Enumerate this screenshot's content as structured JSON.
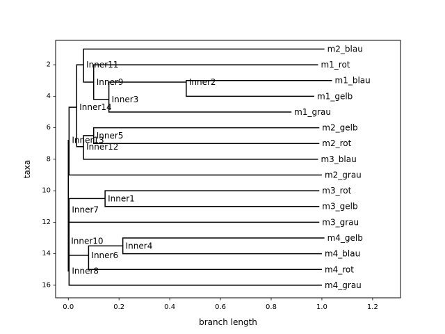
{
  "chart_data": {
    "type": "tree",
    "xlabel": "branch length",
    "ylabel": "taxa",
    "xlim": [
      -0.05,
      1.31
    ],
    "ylim": [
      16.8,
      0.45
    ],
    "x_ticks": [
      0.0,
      0.2,
      0.4,
      0.6,
      0.8,
      1.0,
      1.2
    ],
    "x_tick_labels": [
      "0.0",
      "0.2",
      "0.4",
      "0.6",
      "0.8",
      "1.0",
      "1.2"
    ],
    "y_ticks": [
      2,
      4,
      6,
      8,
      10,
      12,
      14,
      16
    ],
    "y_tick_labels": [
      "2",
      "4",
      "6",
      "8",
      "10",
      "12",
      "14",
      "16"
    ],
    "root": "Inner10",
    "nodes": [
      {
        "name": "Inner10",
        "x": 0.0,
        "y": 13.2,
        "label": "Inner10"
      },
      {
        "name": "Inner13",
        "x": 0.003,
        "y": 6.8,
        "parent": "Inner10",
        "label": "Inner13"
      },
      {
        "name": "Inner14",
        "x": 0.033,
        "y": 4.7,
        "parent": "Inner13",
        "label": "Inner14"
      },
      {
        "name": "Inner11",
        "x": 0.06,
        "y": 2.0,
        "parent": "Inner14",
        "label": "Inner11"
      },
      {
        "name": "m2_blau",
        "x": 1.01,
        "y": 1,
        "parent": "Inner11",
        "label": "m2_blau"
      },
      {
        "name": "Inner9",
        "x": 0.1,
        "y": 3.1,
        "parent": "Inner11",
        "label": "Inner9"
      },
      {
        "name": "m1_rot",
        "x": 0.985,
        "y": 2,
        "parent": "Inner9",
        "label": "m1_rot"
      },
      {
        "name": "Inner3",
        "x": 0.16,
        "y": 4.2,
        "parent": "Inner9",
        "label": "Inner3"
      },
      {
        "name": "Inner2",
        "x": 0.465,
        "y": 3.1,
        "parent": "Inner3",
        "label": "Inner2"
      },
      {
        "name": "m1_blau",
        "x": 1.04,
        "y": 3,
        "parent": "Inner2",
        "label": "m1_blau"
      },
      {
        "name": "m1_gelb",
        "x": 0.97,
        "y": 4,
        "parent": "Inner2",
        "label": "m1_gelb"
      },
      {
        "name": "m1_grau",
        "x": 0.88,
        "y": 5,
        "parent": "Inner3",
        "label": "m1_grau"
      },
      {
        "name": "Inner12",
        "x": 0.06,
        "y": 7.2,
        "parent": "Inner14",
        "label": "Inner12"
      },
      {
        "name": "Inner5",
        "x": 0.1,
        "y": 6.5,
        "parent": "Inner12",
        "label": "Inner5"
      },
      {
        "name": "m2_gelb",
        "x": 0.99,
        "y": 6,
        "parent": "Inner5",
        "label": "m2_gelb"
      },
      {
        "name": "m2_rot",
        "x": 0.99,
        "y": 7,
        "parent": "Inner5",
        "label": "m2_rot"
      },
      {
        "name": "m3_blau",
        "x": 0.985,
        "y": 8,
        "parent": "Inner12",
        "label": "m3_blau"
      },
      {
        "name": "m2_grau",
        "x": 1.0,
        "y": 9,
        "parent": "Inner13",
        "label": "m2_grau"
      },
      {
        "name": "Inner8",
        "x": 0.003,
        "y": 15.1,
        "parent": "Inner10",
        "label": "Inner8"
      },
      {
        "name": "Inner7",
        "x": 0.003,
        "y": 11.2,
        "parent": "Inner8",
        "label": "Inner7"
      },
      {
        "name": "Inner1",
        "x": 0.145,
        "y": 10.5,
        "parent": "Inner7",
        "label": "Inner1"
      },
      {
        "name": "m3_rot",
        "x": 0.99,
        "y": 10,
        "parent": "Inner1",
        "label": "m3_rot"
      },
      {
        "name": "m3_gelb",
        "x": 0.99,
        "y": 11,
        "parent": "Inner1",
        "label": "m3_gelb"
      },
      {
        "name": "m3_grau",
        "x": 0.99,
        "y": 12,
        "parent": "Inner7",
        "label": "m3_grau"
      },
      {
        "name": "Inner6",
        "x": 0.08,
        "y": 14.1,
        "parent": "Inner8",
        "label": "Inner6"
      },
      {
        "name": "Inner4",
        "x": 0.215,
        "y": 13.5,
        "parent": "Inner6",
        "label": "Inner4"
      },
      {
        "name": "m4_gelb",
        "x": 1.01,
        "y": 13,
        "parent": "Inner4",
        "label": "m4_gelb"
      },
      {
        "name": "m4_blau",
        "x": 1.0,
        "y": 14,
        "parent": "Inner4",
        "label": "m4_blau"
      },
      {
        "name": "m4_rot",
        "x": 1.0,
        "y": 15,
        "parent": "Inner6",
        "label": "m4_rot"
      },
      {
        "name": "m4_grau",
        "x": 1.0,
        "y": 16,
        "parent": "Inner8",
        "label": "m4_grau"
      }
    ]
  }
}
